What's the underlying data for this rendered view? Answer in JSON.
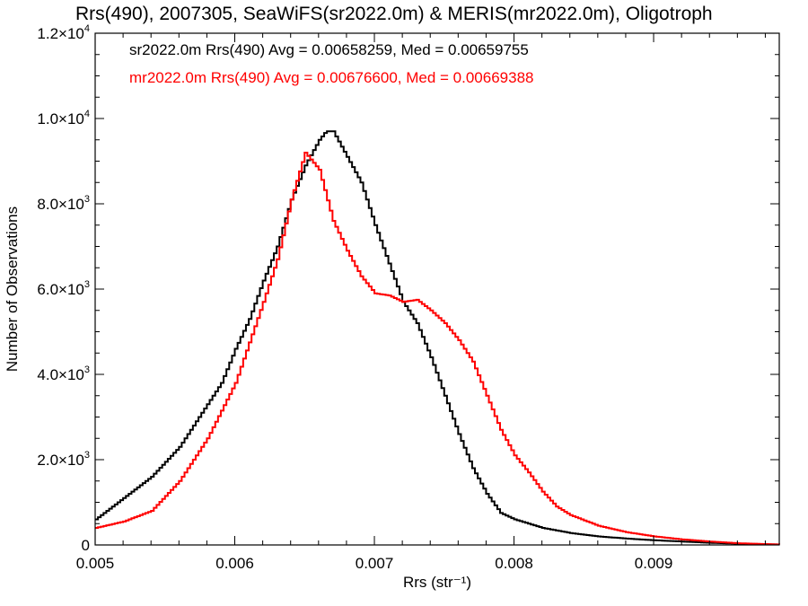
{
  "chart_data": {
    "type": "line",
    "title": "Rrs(490), 2007305, SeaWiFS(sr2022.0m) & MERIS(mr2022.0m), Oligotroph",
    "xlabel": "Rrs (str⁻¹)",
    "ylabel": "Number of Observations",
    "xlim": [
      0.005,
      0.0099
    ],
    "ylim": [
      0,
      12000
    ],
    "grid": false,
    "legend_position": "top-left",
    "x_ticks": [
      {
        "value": 0.005,
        "label": "0.005"
      },
      {
        "value": 0.006,
        "label": "0.006"
      },
      {
        "value": 0.007,
        "label": "0.007"
      },
      {
        "value": 0.008,
        "label": "0.008"
      },
      {
        "value": 0.009,
        "label": "0.009"
      }
    ],
    "y_ticks": [
      {
        "value": 0,
        "mant": "0",
        "exp": ""
      },
      {
        "value": 2000,
        "mant": "2.0×10",
        "exp": "3"
      },
      {
        "value": 4000,
        "mant": "4.0×10",
        "exp": "3"
      },
      {
        "value": 6000,
        "mant": "6.0×10",
        "exp": "3"
      },
      {
        "value": 8000,
        "mant": "8.0×10",
        "exp": "3"
      },
      {
        "value": 10000,
        "mant": "1.0×10",
        "exp": "4"
      },
      {
        "value": 12000,
        "mant": "1.2×10",
        "exp": "4"
      }
    ],
    "series": [
      {
        "label": "sr2022.0m Rrs(490) Avg = 0.00658259, Med = 0.00659755",
        "color": "#000000",
        "x": [
          0.005,
          0.0052,
          0.0054,
          0.0056,
          0.0058,
          0.0059,
          0.006,
          0.0061,
          0.0062,
          0.0063,
          0.0064,
          0.0065,
          0.0066,
          0.00665,
          0.0067,
          0.0068,
          0.0069,
          0.007,
          0.0071,
          0.0072,
          0.0073,
          0.0074,
          0.0075,
          0.0076,
          0.0077,
          0.0078,
          0.0079,
          0.008,
          0.0082,
          0.0084,
          0.0086,
          0.0088,
          0.009,
          0.0092,
          0.0094,
          0.0096,
          0.0098,
          0.0099
        ],
        "y": [
          600,
          1100,
          1600,
          2300,
          3300,
          3800,
          4600,
          5300,
          6200,
          7000,
          8100,
          8900,
          9500,
          9700,
          9700,
          9100,
          8500,
          7500,
          6600,
          5700,
          5200,
          4400,
          3500,
          2600,
          1800,
          1200,
          750,
          600,
          400,
          280,
          200,
          150,
          110,
          80,
          50,
          30,
          15,
          10
        ]
      },
      {
        "label": "mr2022.0m Rrs(490) Avg = 0.00676600, Med = 0.00669388",
        "color": "#ff0000",
        "x": [
          0.005,
          0.0052,
          0.0054,
          0.0056,
          0.0058,
          0.006,
          0.0062,
          0.0063,
          0.0064,
          0.0065,
          0.0066,
          0.0067,
          0.0068,
          0.0069,
          0.007,
          0.0071,
          0.0072,
          0.0073,
          0.0074,
          0.0075,
          0.0076,
          0.0077,
          0.0078,
          0.0079,
          0.008,
          0.0081,
          0.0082,
          0.0083,
          0.0084,
          0.0086,
          0.0088,
          0.009,
          0.0092,
          0.0094,
          0.0096,
          0.0098,
          0.0099
        ],
        "y": [
          400,
          550,
          800,
          1500,
          2500,
          3800,
          5700,
          6700,
          8100,
          9200,
          8800,
          7600,
          6900,
          6300,
          5900,
          5850,
          5700,
          5750,
          5500,
          5200,
          4800,
          4300,
          3500,
          2700,
          2100,
          1700,
          1250,
          900,
          700,
          450,
          300,
          200,
          130,
          80,
          40,
          20,
          10
        ]
      }
    ]
  }
}
